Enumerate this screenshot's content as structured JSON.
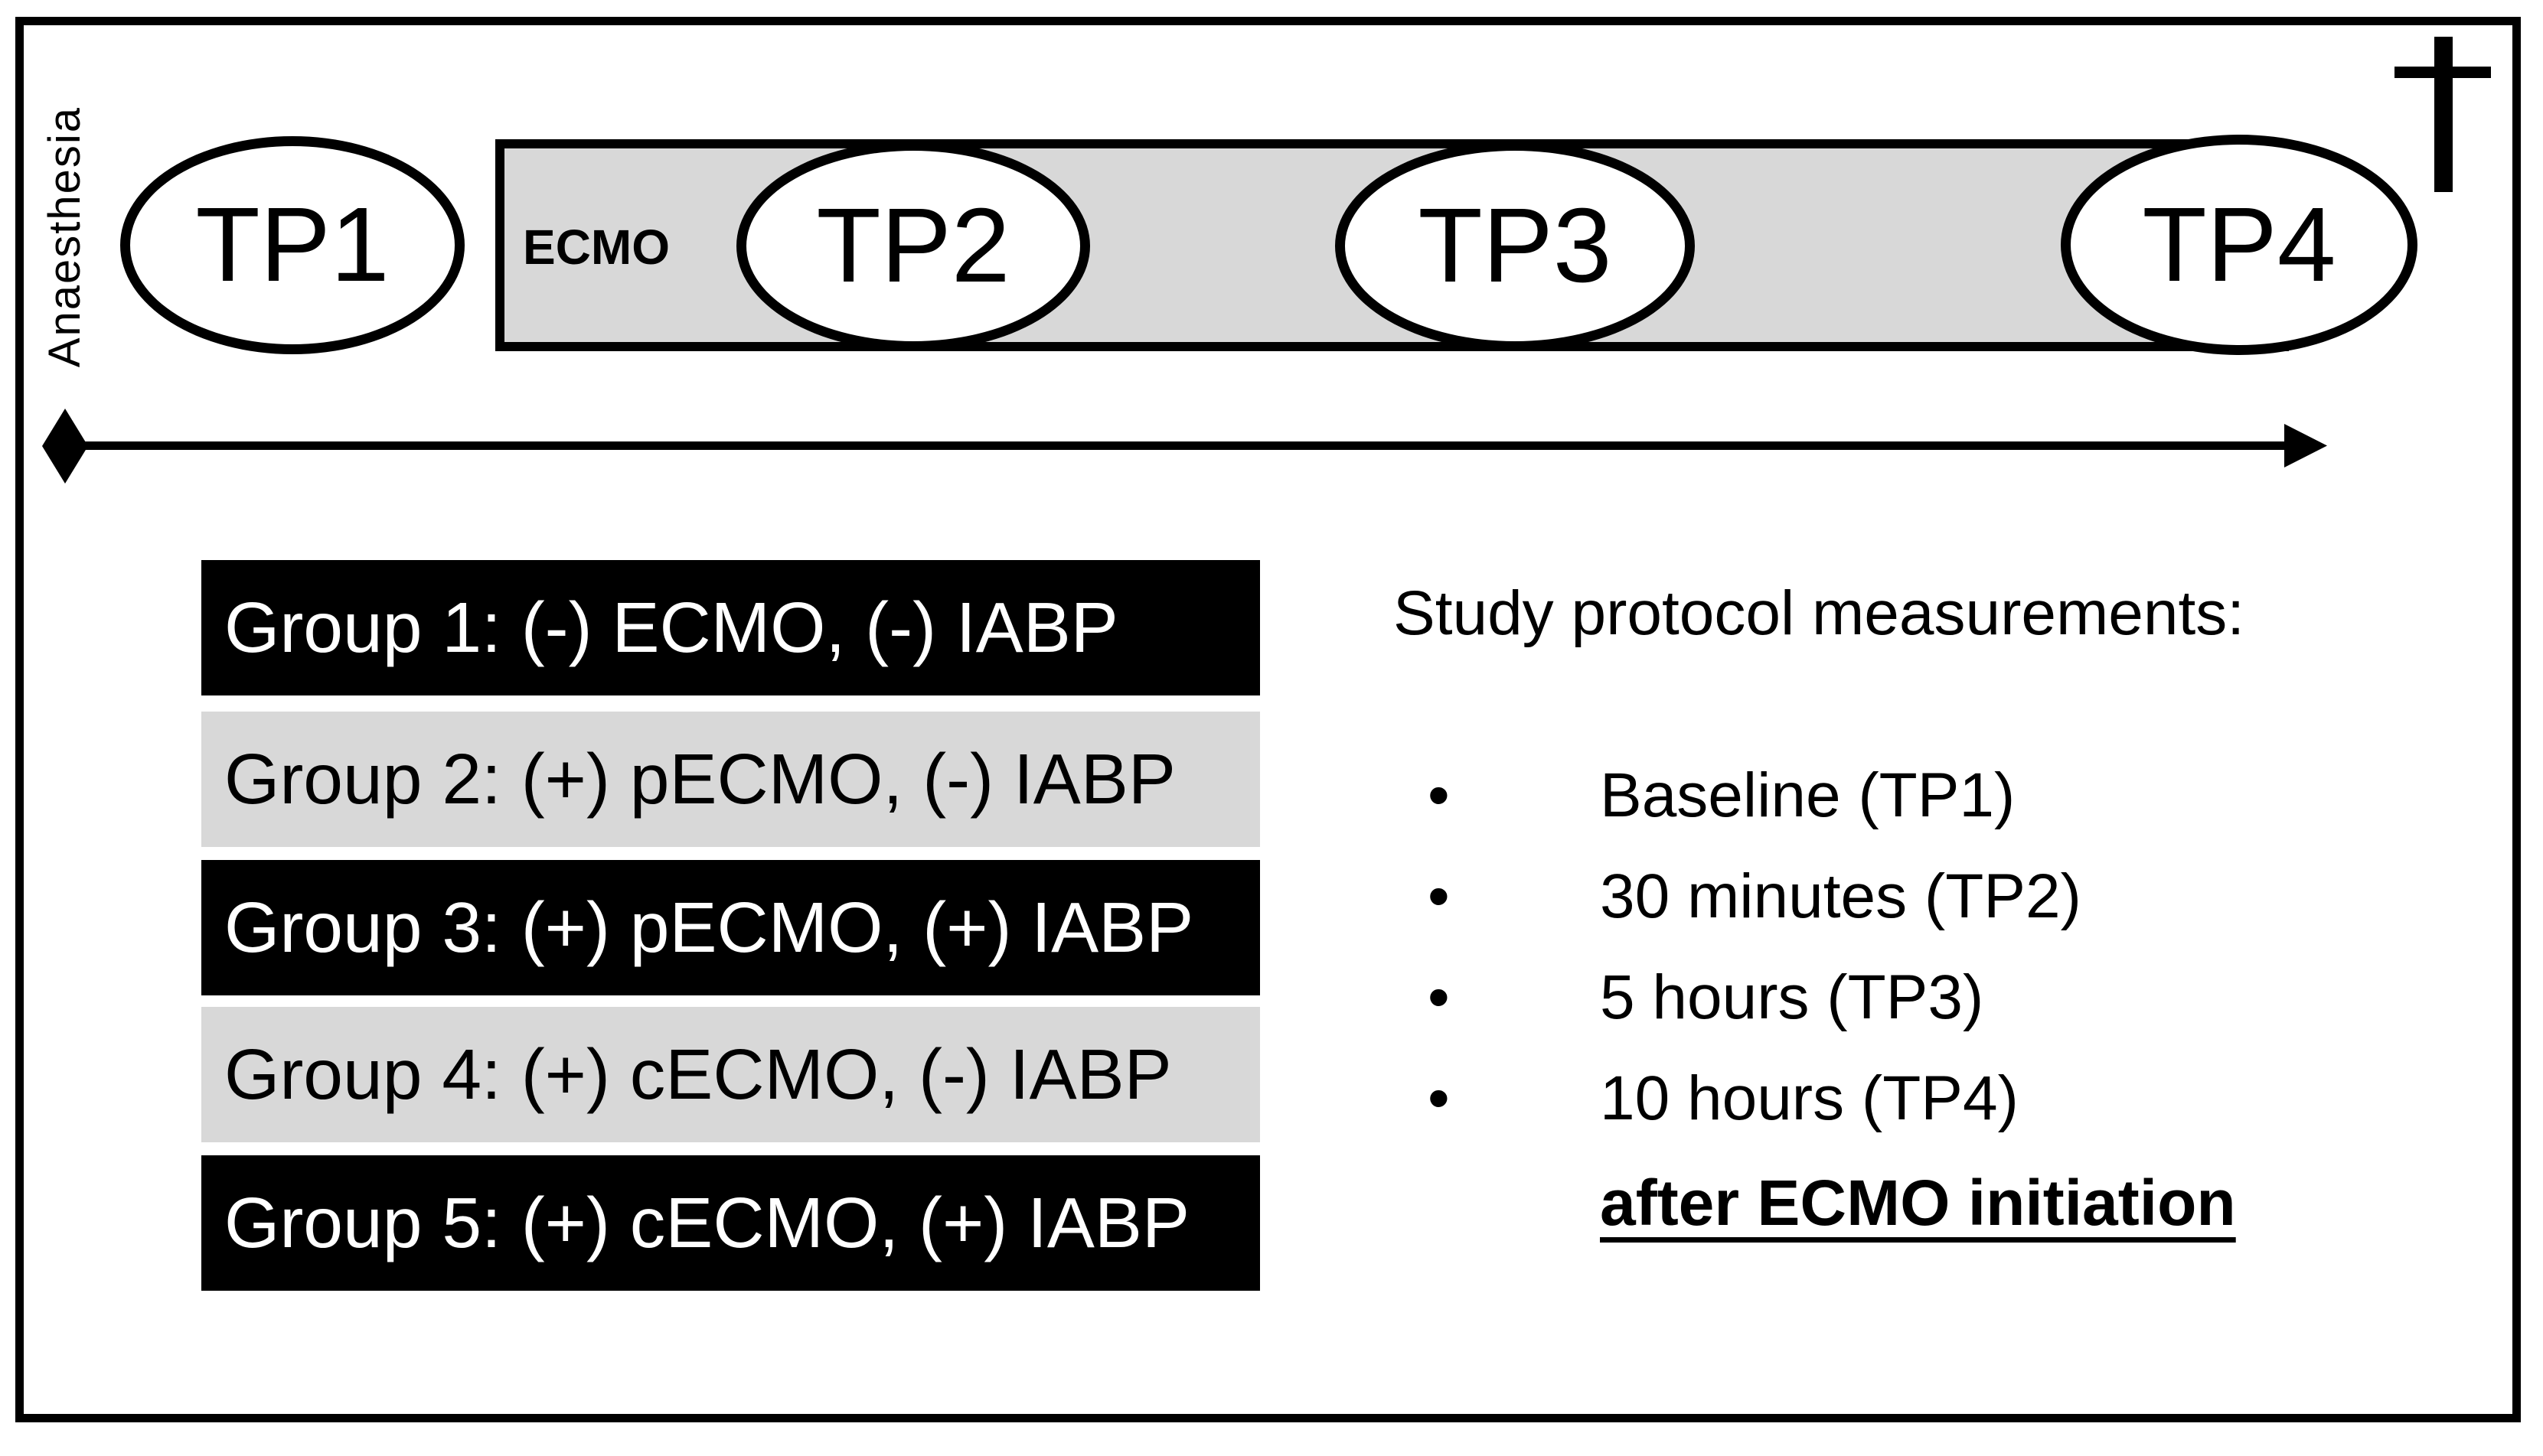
{
  "figure": {
    "anaesthesia_label": "Anaesthesia",
    "ecmo_bar": {
      "label": "ECMO",
      "fill": "#d8d8d8"
    },
    "timepoints": [
      {
        "label": "TP1"
      },
      {
        "label": "TP2"
      },
      {
        "label": "TP3"
      },
      {
        "label": "TP4"
      }
    ],
    "icons": {
      "dagger": "dagger-cross (death / endpoint)",
      "timeline_start": "black diamond",
      "timeline_end": "right arrowhead",
      "bullet": "•"
    },
    "groups": [
      {
        "label": "Group 1: (-) ECMO, (-) IABP",
        "variant": "black"
      },
      {
        "label": "Group 2: (+) pECMO, (-) IABP",
        "variant": "gray"
      },
      {
        "label": "Group 3: (+) pECMO, (+) IABP",
        "variant": "black"
      },
      {
        "label": "Group 4: (+) cECMO, (-) IABP",
        "variant": "gray"
      },
      {
        "label": "Group 5: (+) cECMO, (+) IABP",
        "variant": "black"
      }
    ],
    "measurements": {
      "heading": "Study protocol measurements:",
      "items": [
        "Baseline (TP1)",
        "30 minutes (TP2)",
        "5 hours (TP3)",
        "10 hours (TP4)"
      ],
      "footer": "after ECMO initiation"
    },
    "colors": {
      "black": "#000000",
      "gray": "#d8d8d8",
      "white": "#ffffff"
    }
  }
}
